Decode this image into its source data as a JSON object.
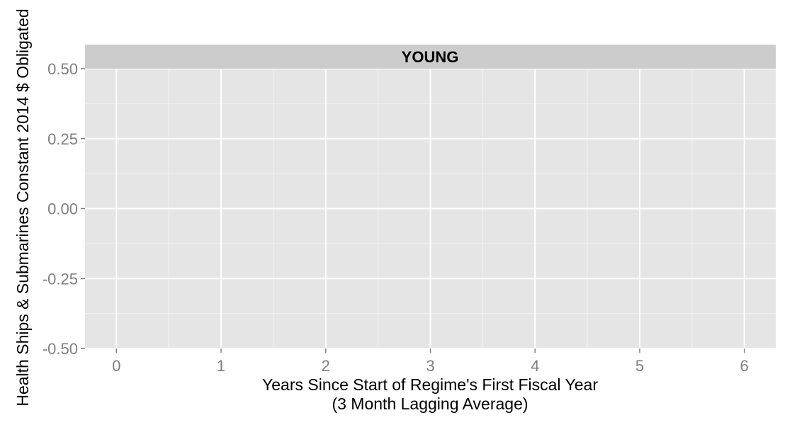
{
  "chart_data": {
    "type": "line",
    "panel_title": "YOUNG",
    "xlabel_line1": "Years Since Start of Regime's First Fiscal Year",
    "xlabel_line2": "(3 Month Lagging Average)",
    "ylabel": "Health Ships & Submarines Constant 2014 $ Obligated",
    "x_ticks": [
      "0",
      "1",
      "2",
      "3",
      "4",
      "5",
      "6"
    ],
    "x_tick_values": [
      0,
      1,
      2,
      3,
      4,
      5,
      6
    ],
    "y_ticks": [
      "-0.50",
      "-0.25",
      "0.00",
      "0.25",
      "0.50"
    ],
    "y_tick_values": [
      -0.5,
      -0.25,
      0.0,
      0.25,
      0.5
    ],
    "xlim": [
      -0.3,
      6.3
    ],
    "ylim": [
      -0.5,
      0.5
    ],
    "grid": true,
    "series": []
  },
  "colors": {
    "panel_background": "#e5e5e5",
    "strip_background": "#cccccc",
    "grid_major": "#ffffff",
    "grid_minor": "#f2f2f2",
    "tick_text": "#7f7f7f"
  }
}
